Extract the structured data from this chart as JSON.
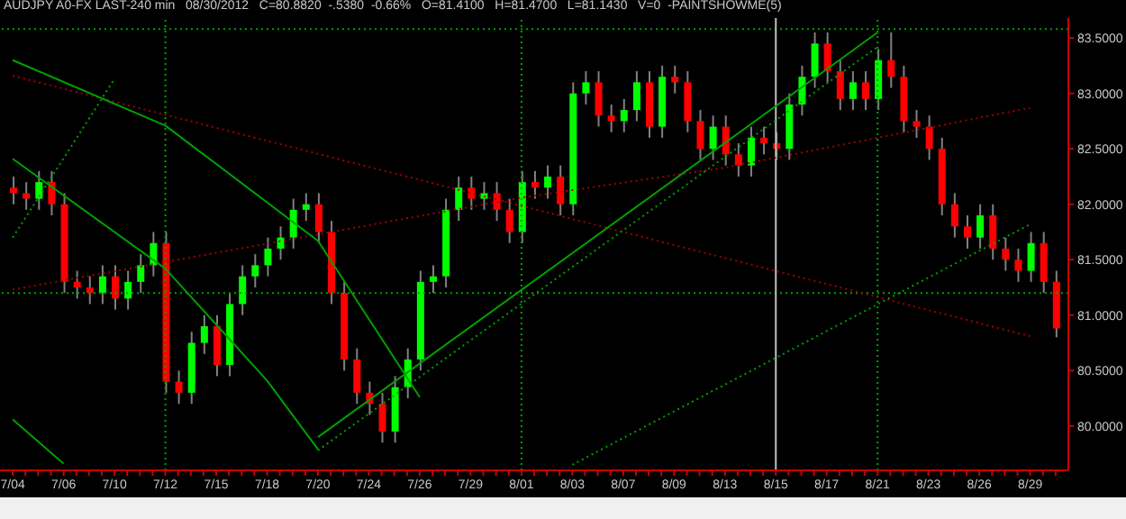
{
  "chart_data": {
    "type": "candlestick",
    "title": "AUDJPY A0-FX LAST-240 min   08/30/2012   C=80.8820  -.5380  -0.66%   O=81.4100   H=81.4700   L=81.1430   V=0  -PAINTSHOWME(5)",
    "categories": [
      "7/04",
      null,
      null,
      null,
      "7/06",
      null,
      null,
      null,
      "7/10",
      null,
      null,
      null,
      "7/12",
      null,
      null,
      null,
      "7/15",
      null,
      null,
      null,
      "7/18",
      null,
      null,
      null,
      "7/20",
      null,
      null,
      null,
      "7/24",
      null,
      null,
      null,
      "7/26",
      null,
      null,
      null,
      "7/29",
      null,
      null,
      null,
      "8/01",
      null,
      null,
      null,
      "8/03",
      null,
      null,
      null,
      "8/07",
      null,
      null,
      null,
      "8/09",
      null,
      null,
      null,
      "8/13",
      null,
      null,
      null,
      "8/15",
      null,
      null,
      null,
      "8/17",
      null,
      null,
      null,
      "8/21",
      null,
      null,
      null,
      "8/23",
      null,
      null,
      null,
      "8/26",
      null,
      null,
      null,
      "8/29",
      null,
      null
    ],
    "ohlc": [
      [
        82.15,
        82.25,
        82.0,
        82.1
      ],
      [
        82.1,
        82.2,
        81.95,
        82.05
      ],
      [
        82.05,
        82.3,
        81.95,
        82.2
      ],
      [
        82.2,
        82.3,
        81.9,
        82.0
      ],
      [
        82.0,
        82.1,
        81.2,
        81.3
      ],
      [
        81.3,
        81.4,
        81.15,
        81.25
      ],
      [
        81.25,
        81.35,
        81.1,
        81.2
      ],
      [
        81.2,
        81.45,
        81.1,
        81.35
      ],
      [
        81.35,
        81.45,
        81.05,
        81.15
      ],
      [
        81.15,
        81.4,
        81.05,
        81.3
      ],
      [
        81.3,
        81.55,
        81.2,
        81.45
      ],
      [
        81.45,
        81.75,
        81.35,
        81.65
      ],
      [
        81.65,
        81.75,
        80.3,
        80.4
      ],
      [
        80.4,
        80.5,
        80.2,
        80.3
      ],
      [
        80.3,
        80.85,
        80.2,
        80.75
      ],
      [
        80.75,
        81.0,
        80.65,
        80.9
      ],
      [
        80.9,
        81.0,
        80.45,
        80.55
      ],
      [
        80.55,
        81.2,
        80.45,
        81.1
      ],
      [
        81.1,
        81.45,
        81.0,
        81.35
      ],
      [
        81.35,
        81.55,
        81.25,
        81.45
      ],
      [
        81.45,
        81.7,
        81.35,
        81.6
      ],
      [
        81.6,
        81.8,
        81.5,
        81.7
      ],
      [
        81.7,
        82.05,
        81.6,
        81.95
      ],
      [
        81.95,
        82.1,
        81.85,
        82.0
      ],
      [
        82.0,
        82.1,
        81.65,
        81.75
      ],
      [
        81.75,
        81.85,
        81.1,
        81.2
      ],
      [
        81.2,
        81.3,
        80.5,
        80.6
      ],
      [
        80.6,
        80.7,
        80.2,
        80.3
      ],
      [
        80.3,
        80.4,
        80.1,
        80.2
      ],
      [
        80.2,
        80.3,
        79.85,
        79.95
      ],
      [
        79.95,
        80.45,
        79.85,
        80.35
      ],
      [
        80.35,
        80.7,
        80.25,
        80.6
      ],
      [
        80.6,
        81.4,
        80.5,
        81.3
      ],
      [
        81.3,
        81.45,
        81.2,
        81.35
      ],
      [
        81.35,
        82.05,
        81.25,
        81.95
      ],
      [
        81.95,
        82.25,
        81.85,
        82.15
      ],
      [
        82.15,
        82.25,
        81.95,
        82.05
      ],
      [
        82.05,
        82.2,
        81.95,
        82.1
      ],
      [
        82.1,
        82.2,
        81.85,
        81.95
      ],
      [
        81.95,
        82.05,
        81.65,
        81.75
      ],
      [
        81.75,
        82.3,
        81.65,
        82.2
      ],
      [
        82.2,
        82.3,
        82.05,
        82.15
      ],
      [
        82.15,
        82.35,
        82.05,
        82.25
      ],
      [
        82.25,
        82.35,
        81.9,
        82.0
      ],
      [
        82.0,
        83.1,
        81.9,
        83.0
      ],
      [
        83.0,
        83.2,
        82.9,
        83.1
      ],
      [
        83.1,
        83.2,
        82.7,
        82.8
      ],
      [
        82.8,
        82.9,
        82.65,
        82.75
      ],
      [
        82.75,
        82.95,
        82.65,
        82.85
      ],
      [
        82.85,
        83.2,
        82.75,
        83.1
      ],
      [
        83.1,
        83.2,
        82.6,
        82.7
      ],
      [
        82.7,
        83.25,
        82.6,
        83.15
      ],
      [
        83.15,
        83.25,
        83.0,
        83.1
      ],
      [
        83.1,
        83.2,
        82.65,
        82.75
      ],
      [
        82.75,
        82.85,
        82.4,
        82.5
      ],
      [
        82.5,
        82.8,
        82.4,
        82.7
      ],
      [
        82.7,
        82.8,
        82.35,
        82.45
      ],
      [
        82.45,
        82.55,
        82.25,
        82.35
      ],
      [
        82.35,
        82.7,
        82.25,
        82.6
      ],
      [
        82.6,
        82.7,
        82.45,
        82.55
      ],
      [
        82.55,
        82.65,
        82.4,
        82.5
      ],
      [
        82.5,
        83.0,
        82.4,
        82.9
      ],
      [
        82.9,
        83.25,
        82.8,
        83.15
      ],
      [
        83.15,
        83.55,
        83.05,
        83.45
      ],
      [
        83.45,
        83.55,
        83.1,
        83.2
      ],
      [
        83.2,
        83.3,
        82.85,
        82.95
      ],
      [
        82.95,
        83.2,
        82.85,
        83.1
      ],
      [
        83.1,
        83.2,
        82.85,
        82.95
      ],
      [
        82.95,
        83.4,
        82.85,
        83.3
      ],
      [
        83.3,
        83.55,
        83.05,
        83.15
      ],
      [
        83.15,
        83.25,
        82.65,
        82.75
      ],
      [
        82.75,
        82.85,
        82.6,
        82.7
      ],
      [
        82.7,
        82.8,
        82.4,
        82.5
      ],
      [
        82.5,
        82.6,
        81.9,
        82.0
      ],
      [
        82.0,
        82.1,
        81.7,
        81.8
      ],
      [
        81.8,
        81.9,
        81.6,
        81.7
      ],
      [
        81.7,
        82.0,
        81.6,
        81.9
      ],
      [
        81.9,
        82.0,
        81.5,
        81.6
      ],
      [
        81.6,
        81.7,
        81.4,
        81.5
      ],
      [
        81.5,
        81.6,
        81.3,
        81.4
      ],
      [
        81.4,
        81.75,
        81.3,
        81.65
      ],
      [
        81.65,
        81.75,
        81.2,
        81.3
      ],
      [
        81.3,
        81.4,
        80.8,
        80.88
      ]
    ],
    "colors": [
      "#ff0000",
      "#ff0000",
      "#00ff00",
      "#ff0000",
      "#ff0000",
      "#ff0000",
      "#ff0000",
      "#00ff00",
      "#ff0000",
      "#00ff00",
      "#00ff00",
      "#00ff00",
      "#ff0000",
      "#ff0000",
      "#00ff00",
      "#00ff00",
      "#ff0000",
      "#00ff00",
      "#00ff00",
      "#00ff00",
      "#00ff00",
      "#00ff00",
      "#00ff00",
      "#00ff00",
      "#ff0000",
      "#ff0000",
      "#ff0000",
      "#ff0000",
      "#ff0000",
      "#ff0000",
      "#00ff00",
      "#00ff00",
      "#00ff00",
      "#00ff00",
      "#00ff00",
      "#00ff00",
      "#ff0000",
      "#00ff00",
      "#ff0000",
      "#ff0000",
      "#00ff00",
      "#ff0000",
      "#00ff00",
      "#ff0000",
      "#00ff00",
      "#00ff00",
      "#ff0000",
      "#ff0000",
      "#00ff00",
      "#00ff00",
      "#ff0000",
      "#00ff00",
      "#ff0000",
      "#ff0000",
      "#ff0000",
      "#00ff00",
      "#ff0000",
      "#ff0000",
      "#00ff00",
      "#ff0000",
      "#ff0000",
      "#00ff00",
      "#00ff00",
      "#00ff00",
      "#ff0000",
      "#ff0000",
      "#00ff00",
      "#ff0000",
      "#00ff00",
      "#ff0000",
      "#ff0000",
      "#ff0000",
      "#ff0000",
      "#ff0000",
      "#ff0000",
      "#ff0000",
      "#00ff00",
      "#ff0000",
      "#ff0000",
      "#ff0000",
      "#00ff00",
      "#ff0000",
      "#ff0000"
    ],
    "series": [
      {
        "type": "line",
        "color": "#a00000",
        "line_style": "dotted",
        "x": [
          "7/04",
          "8/29"
        ],
        "values": [
          83.16,
          80.81
        ]
      },
      {
        "type": "line",
        "color": "#a00000",
        "line_style": "dotted",
        "x": [
          "7/04",
          "8/01",
          "8/13",
          "8/29"
        ],
        "values": [
          81.23,
          82.06,
          82.33,
          82.87
        ]
      },
      {
        "type": "line",
        "color": "#00a000",
        "line_style": "solid",
        "x": [
          "7/20",
          "8/21"
        ],
        "values": [
          79.9,
          83.55
        ]
      },
      {
        "type": "line",
        "color": "#00a000",
        "line_style": "dotted",
        "x": [
          "7/20",
          "8/21"
        ],
        "values": [
          79.78,
          83.42
        ]
      },
      {
        "type": "line",
        "color": "#00a000",
        "line_style": "dotted",
        "x": [
          "8/03",
          "8/26",
          "8/29"
        ],
        "values": [
          79.65,
          81.58,
          81.82
        ]
      },
      {
        "type": "line",
        "color": "#00a000",
        "line_style": "dotted",
        "x": [
          "7/04",
          "7/10"
        ],
        "values": [
          81.7,
          83.13
        ]
      },
      {
        "type": "line",
        "color": "#00a000",
        "line_style": "solid",
        "x": [
          "7/04",
          "7/12",
          "7/20",
          "7/26"
        ],
        "values": [
          83.3,
          82.71,
          81.67,
          80.26
        ]
      },
      {
        "type": "line",
        "color": "#00a000",
        "line_style": "solid",
        "x": [
          "7/04",
          "7/12",
          "7/18",
          "7/20"
        ],
        "values": [
          82.41,
          81.42,
          80.41,
          79.79
        ]
      },
      {
        "type": "line",
        "color": "#00a000",
        "line_style": "solid",
        "x": [
          "7/04",
          "7/06"
        ],
        "values": [
          80.06,
          79.66
        ]
      }
    ],
    "ref_lines": [
      {
        "axis": "y",
        "value": 81.2,
        "color": "#00a000",
        "line_style": "dotted"
      },
      {
        "axis": "y",
        "value": 83.58,
        "color": "#00a000",
        "line_style": "dotted"
      },
      {
        "axis": "x",
        "value": "7/12",
        "color": "#00a000",
        "line_style": "dotted"
      },
      {
        "axis": "x",
        "value": "8/01",
        "color": "#00a000",
        "line_style": "dotted"
      },
      {
        "axis": "x",
        "value": "8/21",
        "color": "#00a000",
        "line_style": "dotted"
      },
      {
        "axis": "x",
        "value": "8/15",
        "color": "#c0c0c0",
        "line_style": "solid"
      }
    ],
    "ylim": [
      79.6,
      83.68
    ],
    "yticks": [
      {
        "value": 80,
        "label": "80.0000"
      },
      {
        "value": 80.5,
        "label": "80.5000"
      },
      {
        "value": 81,
        "label": "81.0000"
      },
      {
        "value": 81.5,
        "label": "81.5000"
      },
      {
        "value": 82,
        "label": "82.0000"
      },
      {
        "value": 82.5,
        "label": "82.5000"
      },
      {
        "value": 83,
        "label": "83.0000"
      },
      {
        "value": 83.5,
        "label": "83.5000"
      }
    ],
    "grid": false,
    "legend": false
  }
}
